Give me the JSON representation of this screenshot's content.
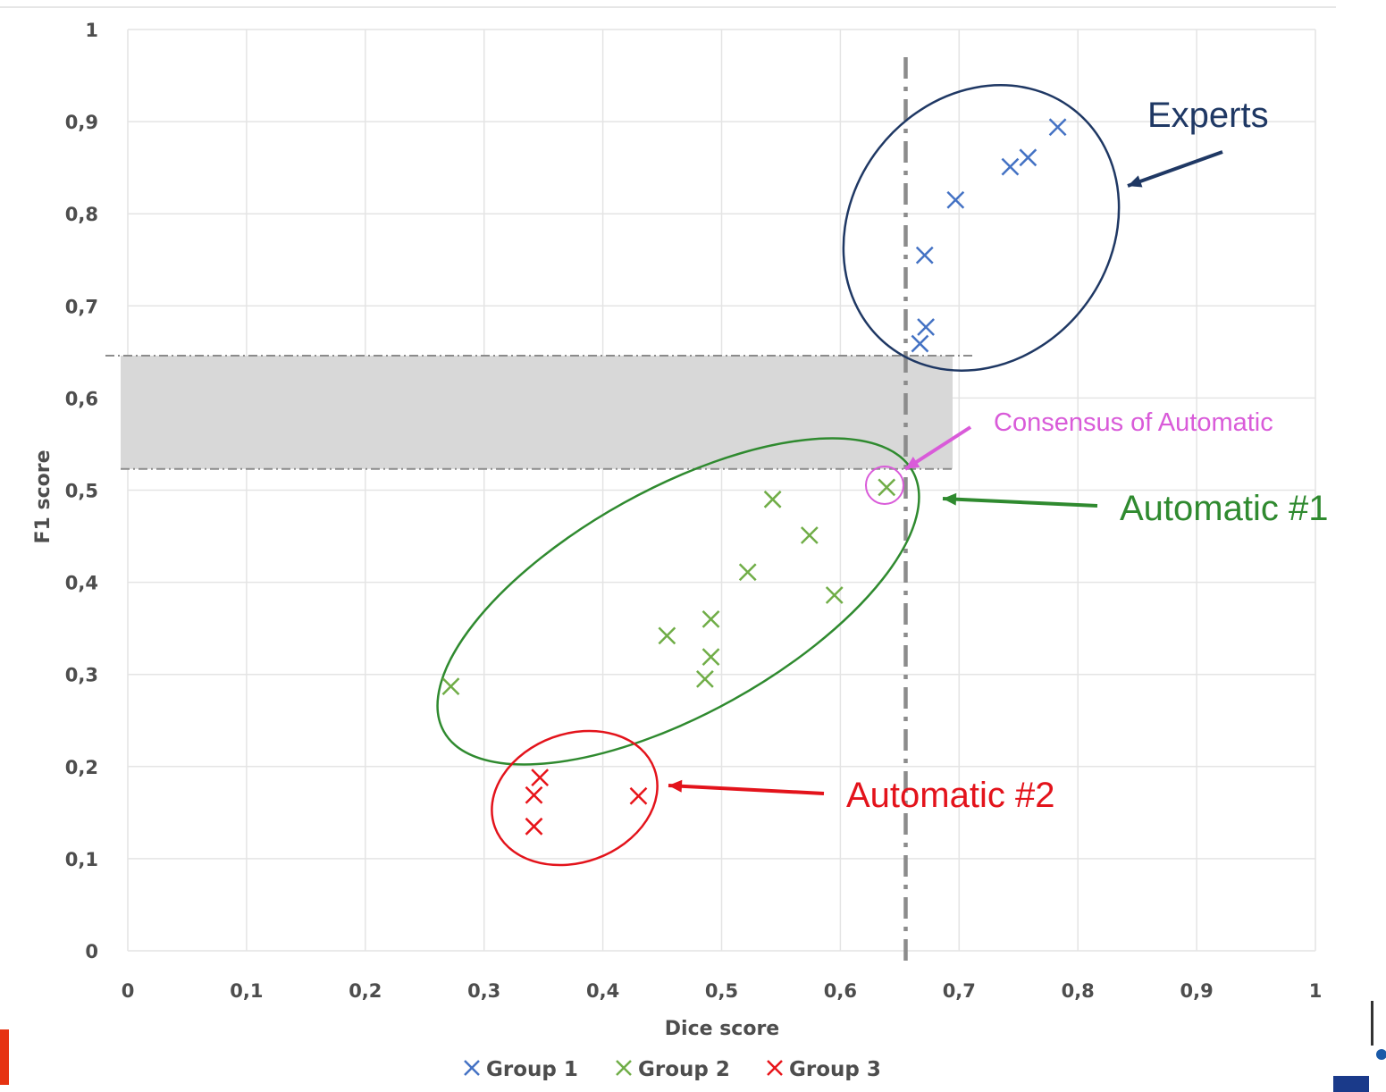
{
  "chart_data": {
    "type": "scatter",
    "xlabel": "Dice score",
    "ylabel": "F1 score",
    "xlim": [
      0,
      1
    ],
    "ylim": [
      0,
      1
    ],
    "x_ticks": [
      "0",
      "0,1",
      "0,2",
      "0,3",
      "0,4",
      "0,5",
      "0,6",
      "0,7",
      "0,8",
      "0,9",
      "1"
    ],
    "y_ticks": [
      "0",
      "0,1",
      "0,2",
      "0,3",
      "0,4",
      "0,5",
      "0,6",
      "0,7",
      "0,8",
      "0,9",
      "1"
    ],
    "grid": true,
    "legend_position": "bottom",
    "series": [
      {
        "name": "Group 1",
        "color": "#4472c4",
        "points": [
          [
            0.671,
            0.755
          ],
          [
            0.697,
            0.815
          ],
          [
            0.743,
            0.851
          ],
          [
            0.758,
            0.861
          ],
          [
            0.783,
            0.894
          ],
          [
            0.672,
            0.677
          ],
          [
            0.667,
            0.659
          ]
        ]
      },
      {
        "name": "Group 2",
        "color": "#70ad47",
        "points": [
          [
            0.272,
            0.287
          ],
          [
            0.454,
            0.342
          ],
          [
            0.486,
            0.295
          ],
          [
            0.491,
            0.36
          ],
          [
            0.491,
            0.319
          ],
          [
            0.522,
            0.411
          ],
          [
            0.543,
            0.49
          ],
          [
            0.574,
            0.451
          ],
          [
            0.595,
            0.386
          ],
          [
            0.639,
            0.503
          ]
        ]
      },
      {
        "name": "Group 3",
        "color": "#e8141a",
        "points": [
          [
            0.342,
            0.135
          ],
          [
            0.342,
            0.169
          ],
          [
            0.347,
            0.188
          ],
          [
            0.43,
            0.168
          ]
        ]
      }
    ],
    "threshold_x": 0.655,
    "shaded_band_y": [
      0.523,
      0.646
    ],
    "annotations": {
      "experts": {
        "text": "Experts",
        "color": "#1f3864"
      },
      "consensus": {
        "text": "Consensus of Automatic",
        "color": "#d95bd9"
      },
      "auto1": {
        "text": "Automatic #1",
        "color": "#2f8a2f"
      },
      "auto2": {
        "text": "Automatic #2",
        "color": "#e3131b"
      }
    }
  }
}
